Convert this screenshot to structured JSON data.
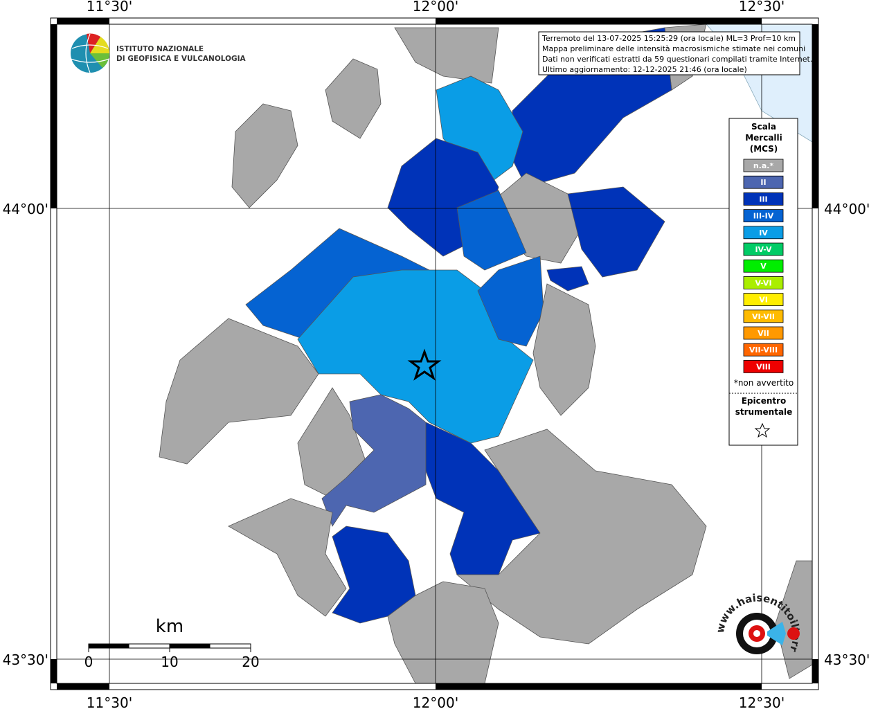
{
  "header": {
    "logo_lines": [
      "ISTITUTO NAZIONALE",
      "DI GEOFISICA E VULCANOLOGIA"
    ]
  },
  "info": {
    "lines": [
      "Terremoto del 13-07-2025 15:25:29 (ora locale) ML=3 Prof=10 km",
      "Mappa preliminare delle intensità macrosismiche stimate nei comuni",
      "Dati non verificati estratti da 59 questionari compilati tramite Internet.",
      "Ultimo aggiornamento: 12-12-2025 21:46 (ora locale)"
    ]
  },
  "graticule": {
    "lon_labels": [
      "11°30'",
      "12°00'",
      "12°30'"
    ],
    "lat_labels": [
      "44°00'",
      "43°30'"
    ]
  },
  "legend": {
    "title_lines": [
      "Scala",
      "Mercalli",
      "(MCS)"
    ],
    "items": [
      {
        "label": "n.a.*",
        "color": "#a8a8a8"
      },
      {
        "label": "II",
        "color": "#4d66b0"
      },
      {
        "label": "III",
        "color": "#0033b8"
      },
      {
        "label": "III-IV",
        "color": "#0563d2"
      },
      {
        "label": "IV",
        "color": "#0a9de6"
      },
      {
        "label": "IV-V",
        "color": "#00cc66"
      },
      {
        "label": "V",
        "color": "#00ee00"
      },
      {
        "label": "V-VI",
        "color": "#aaee00"
      },
      {
        "label": "VI",
        "color": "#ffee00"
      },
      {
        "label": "VI-VII",
        "color": "#ffbb00"
      },
      {
        "label": "VII",
        "color": "#ff9900"
      },
      {
        "label": "VII-VIII",
        "color": "#ff6600"
      },
      {
        "label": "VIII",
        "color": "#ee0000"
      }
    ],
    "note": "*non avvertito",
    "epicenter_lines": [
      "Epicentro",
      "strumentale"
    ]
  },
  "scale_bar": {
    "unit": "km",
    "ticks": [
      0,
      10,
      20
    ]
  },
  "watermark": {
    "text": "www.haisentitoilterremoto.it"
  }
}
